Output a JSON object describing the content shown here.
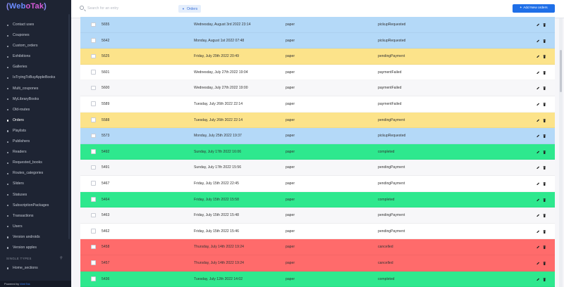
{
  "logo": {
    "open": "(",
    "web": "Web",
    "o": "o",
    "tak": "Tak",
    "close": ")"
  },
  "sidebar": {
    "items": [
      {
        "label": "Contact uses"
      },
      {
        "label": "Coupones"
      },
      {
        "label": "Custom_orders"
      },
      {
        "label": "Exhibitions"
      },
      {
        "label": "Galleries"
      },
      {
        "label": "IsTryingToBuyAppleBooks"
      },
      {
        "label": "Multi_coupones"
      },
      {
        "label": "MyLibraryBooks"
      },
      {
        "label": "Old-routes"
      },
      {
        "label": "Orders",
        "active": true
      },
      {
        "label": "Playlists"
      },
      {
        "label": "Publishers"
      },
      {
        "label": "Readers"
      },
      {
        "label": "Requested_books"
      },
      {
        "label": "Routes_categories"
      },
      {
        "label": "Sliders"
      },
      {
        "label": "Statuses"
      },
      {
        "label": "SubscriptionPackages"
      },
      {
        "label": "Transactions"
      },
      {
        "label": "Users"
      },
      {
        "label": "Version androids"
      },
      {
        "label": "Version apples"
      }
    ],
    "single_types_heading": "SINGLE TYPES",
    "single_types_items": [
      {
        "label": "Home_sections"
      }
    ],
    "powered_prefix": "Powered by",
    "powered_brand": "WebTak"
  },
  "header": {
    "search_placeholder": "Search for an entry",
    "filter_label": "Orders",
    "add_button_label": "Add New orders"
  },
  "orders": [
    {
      "id": "5655",
      "date": "Wednesday, August 3rd 2022 23:14",
      "type": "paper",
      "status": "pickupRequested",
      "color": "blue"
    },
    {
      "id": "5642",
      "date": "Monday, August 1st 2022 07:48",
      "type": "paper",
      "status": "pickupRequested",
      "color": "blue"
    },
    {
      "id": "5625",
      "date": "Friday, July 29th 2022 20:49",
      "type": "paper",
      "status": "pendingPayment",
      "color": "yellow"
    },
    {
      "id": "5601",
      "date": "Wednesday, July 27th 2022 19:04",
      "type": "paper",
      "status": "paymentFailed",
      "color": "white"
    },
    {
      "id": "5600",
      "date": "Wednesday, July 27th 2022 19:00",
      "type": "paper",
      "status": "paymentFailed",
      "color": "grey"
    },
    {
      "id": "5589",
      "date": "Tuesday, July 26th 2022 22:14",
      "type": "paper",
      "status": "paymentFailed",
      "color": "white"
    },
    {
      "id": "5588",
      "date": "Tuesday, July 26th 2022 22:14",
      "type": "paper",
      "status": "pendingPayment",
      "color": "yellow"
    },
    {
      "id": "5573",
      "date": "Monday, July 25th 2022 19:37",
      "type": "paper",
      "status": "pickupRequested",
      "color": "blue"
    },
    {
      "id": "5492",
      "date": "Sunday, July 17th 2022 16:06",
      "type": "paper",
      "status": "completed",
      "color": "green"
    },
    {
      "id": "5491",
      "date": "Sunday, July 17th 2022 15:56",
      "type": "paper",
      "status": "pendingPayment",
      "color": "grey"
    },
    {
      "id": "5467",
      "date": "Friday, July 15th 2022 22:45",
      "type": "paper",
      "status": "pendingPayment",
      "color": "white"
    },
    {
      "id": "5464",
      "date": "Friday, July 15th 2022 15:58",
      "type": "paper",
      "status": "completed",
      "color": "green"
    },
    {
      "id": "5463",
      "date": "Friday, July 15th 2022 15:48",
      "type": "paper",
      "status": "pendingPayment",
      "color": "grey"
    },
    {
      "id": "5462",
      "date": "Friday, July 15th 2022 15:46",
      "type": "paper",
      "status": "pendingPayment",
      "color": "white"
    },
    {
      "id": "5458",
      "date": "Thursday, July 14th 2022 19:24",
      "type": "paper",
      "status": "cancelled",
      "color": "red"
    },
    {
      "id": "5457",
      "date": "Thursday, July 14th 2022 19:24",
      "type": "paper",
      "status": "cancelled",
      "color": "red"
    },
    {
      "id": "5436",
      "date": "Tuesday, July 12th 2022 14:02",
      "type": "paper",
      "status": "completed",
      "color": "green"
    }
  ],
  "colors": {
    "sidebar_bg": "#1e2433",
    "accent": "#1f6fe8",
    "row_blue": "#b4d9f8",
    "row_yellow": "#fce38a",
    "row_green": "#2ee88e",
    "row_red": "#ff6b6b"
  }
}
